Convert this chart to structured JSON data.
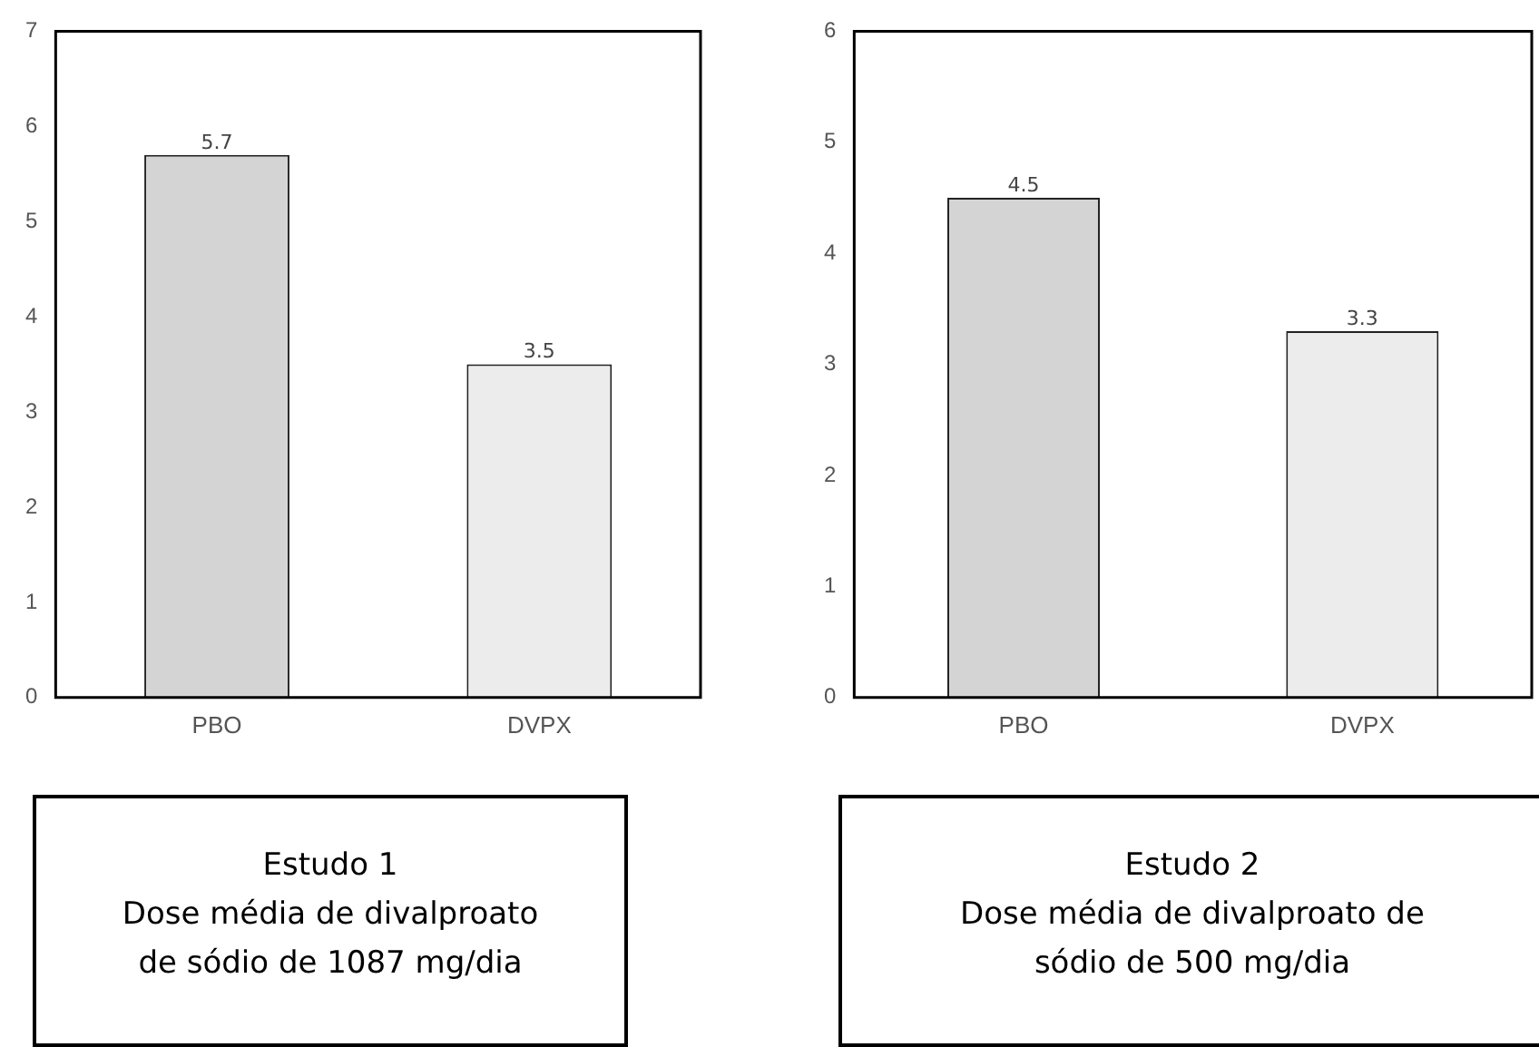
{
  "chart_data": [
    {
      "type": "bar",
      "categories": [
        "PBO",
        "DVPX"
      ],
      "values": [
        5.7,
        3.5
      ],
      "colors": [
        "#d4d4d4",
        "#ececec"
      ],
      "ylim": [
        0,
        7
      ],
      "yticks": [
        0,
        1,
        2,
        3,
        4,
        5,
        6,
        7
      ],
      "grid": false,
      "data_labels": true,
      "annotations": [
        "Estudo 1\nDose média de divalproato\nde sódio de 1087 mg/dia"
      ]
    },
    {
      "type": "bar",
      "categories": [
        "PBO",
        "DVPX"
      ],
      "values": [
        4.5,
        3.3
      ],
      "colors": [
        "#d4d4d4",
        "#ececec"
      ],
      "ylim": [
        0,
        6
      ],
      "yticks": [
        0,
        1,
        2,
        3,
        4,
        5,
        6
      ],
      "grid": false,
      "data_labels": true,
      "annotations": [
        "Estudo 2\nDose média de divalproato de\nsódio de 500 mg/dia"
      ]
    }
  ]
}
